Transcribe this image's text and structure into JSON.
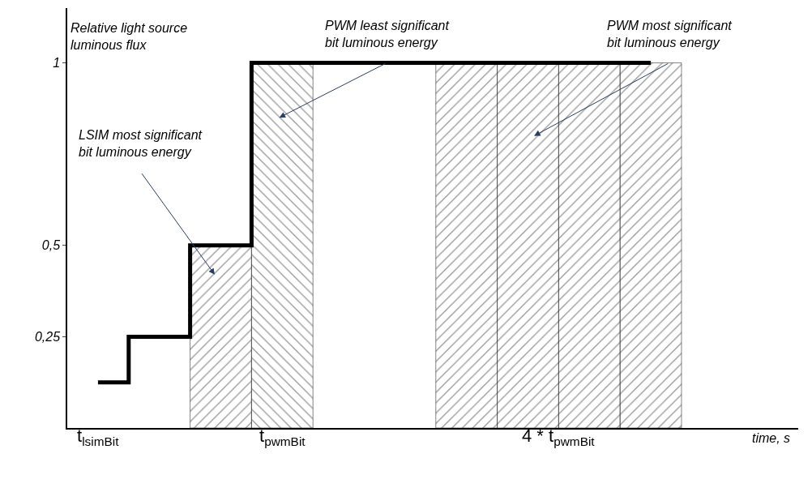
{
  "chart_data": {
    "type": "step",
    "ylabel": "Relative light source luminous flux",
    "categories": [
      null,
      null,
      null,
      null,
      null,
      null,
      null,
      null,
      null,
      null
    ],
    "series": [
      {
        "color": "#000000",
        "values": [
          0.125,
          0.25,
          0.5,
          1,
          1,
          1,
          1,
          1,
          1,
          1
        ]
      },
      {
        "type": "bar",
        "color": "#333333",
        "values": [
          null,
          null,
          0.5,
          null,
          null,
          null,
          1,
          1,
          1,
          1
        ]
      },
      {
        "type": "bar",
        "color": "#333333",
        "values": [
          null,
          null,
          null,
          1,
          null,
          null,
          null,
          null,
          null,
          null
        ]
      }
    ],
    "ylim": [
      0,
      1.15
    ],
    "yticks": [
      {
        "value": 0.25,
        "label": "0,25"
      },
      {
        "value": 0.5,
        "label": "0,5"
      },
      {
        "value": 1,
        "label": "1"
      }
    ],
    "grid": false,
    "marker": "none",
    "line_style": "solid",
    "annotations": [
      "PWM least significant bit luminous energy",
      "PWM most significant bit luminous energy",
      "LSIM most significant bit luminous energy",
      "t$_{lsimBit}$",
      "t$_{pwmBit}$",
      "4 * t$_{pwmBit}$",
      "time, s"
    ]
  }
}
